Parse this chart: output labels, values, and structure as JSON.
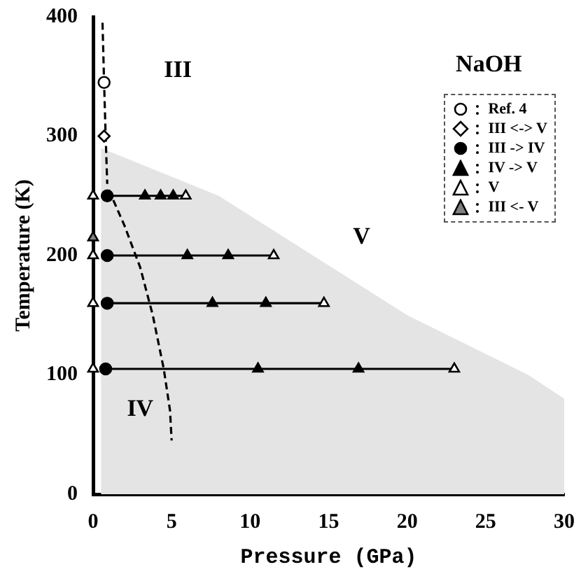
{
  "chart_data": {
    "type": "scatter",
    "xlabel": "Pressure (GPa)",
    "ylabel": "Temperature (K)",
    "xlim": [
      0,
      30
    ],
    "xticks": [
      0,
      5,
      10,
      15,
      20,
      25,
      30
    ],
    "ylim": [
      0,
      400
    ],
    "yticks": [
      0,
      100,
      200,
      300,
      400
    ],
    "grid": false,
    "legend": "top right",
    "annotations": [
      "NaOH",
      "III",
      "V",
      "IV"
    ],
    "series": [
      {
        "type": "area",
        "color": "#e4e4e4",
        "marker": "none",
        "x": [
          0.5,
          8,
          14,
          20,
          27.7,
          30
        ],
        "values": [
          290,
          250,
          200,
          150,
          100,
          80
        ]
      },
      {
        "type": "line",
        "color": "#000000",
        "marker": "none",
        "line_style": "dashed",
        "x": [
          0.6,
          0.7,
          0.8,
          0.9
        ],
        "values": [
          395,
          345,
          300,
          260
        ]
      },
      {
        "type": "line",
        "color": "#000000",
        "marker": "none",
        "line_style": "dashed",
        "x": [
          1.0,
          2,
          3,
          3.8,
          4.5,
          4.9,
          5
        ],
        "values": [
          255,
          225,
          190,
          150,
          105,
          70,
          45
        ]
      },
      {
        "type": "line",
        "color": "#000000",
        "marker": "none",
        "line_style": "solid",
        "x": [
          0.9,
          5.9
        ],
        "values": [
          250,
          250
        ]
      },
      {
        "type": "line",
        "color": "#000000",
        "marker": "none",
        "line_style": "solid",
        "x": [
          0.9,
          11.5
        ],
        "values": [
          200,
          200
        ]
      },
      {
        "type": "line",
        "color": "#000000",
        "marker": "none",
        "line_style": "solid",
        "x": [
          0.9,
          14.7
        ],
        "values": [
          160,
          160
        ]
      },
      {
        "type": "line",
        "color": "#000000",
        "marker": "none",
        "line_style": "solid",
        "x": [
          0.8,
          23
        ],
        "values": [
          105,
          105
        ]
      },
      {
        "name": "Ref. 4",
        "color": "#ffffff",
        "marker": "circle",
        "x": [
          0.7
        ],
        "values": [
          345
        ]
      },
      {
        "name": "III <-> V",
        "color": "#ffffff",
        "marker": "diamond",
        "x": [
          0.7
        ],
        "values": [
          300
        ]
      },
      {
        "name": "III -> IV",
        "color": "#000000",
        "marker": "circle",
        "x": [
          0.9,
          0.9,
          0.9,
          0.8
        ],
        "values": [
          250,
          200,
          160,
          105
        ]
      },
      {
        "name": "IV -> V",
        "color": "#000000",
        "marker": "triangle",
        "x": [
          3.3,
          4.3,
          5.1,
          6.0,
          8.6,
          7.6,
          11.0,
          10.5,
          16.9
        ],
        "values": [
          250,
          250,
          250,
          200,
          200,
          160,
          160,
          105,
          105
        ]
      },
      {
        "name": "V",
        "color": "#ffffff",
        "marker": "triangle",
        "x": [
          5.9,
          11.5,
          14.7,
          23,
          0,
          0,
          0,
          0
        ],
        "values": [
          250,
          200,
          160,
          105,
          250,
          200,
          160,
          105
        ]
      },
      {
        "name": "III <- V",
        "color": "#808080",
        "marker": "triangle",
        "x": [
          0
        ],
        "values": [
          215
        ]
      }
    ]
  }
}
